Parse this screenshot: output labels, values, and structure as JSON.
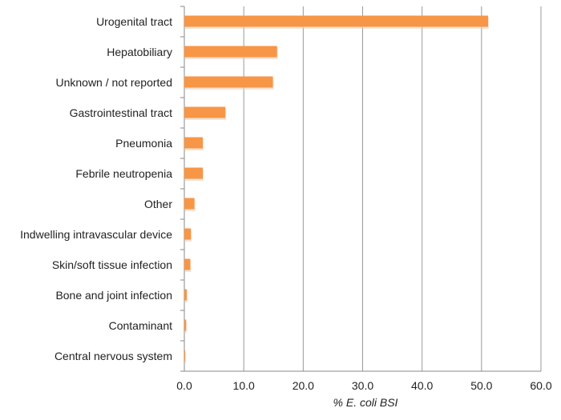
{
  "chart_data": {
    "type": "bar",
    "orientation": "horizontal",
    "title": "",
    "xlabel": "% E. coli BSI",
    "ylabel": "",
    "xlim": [
      0,
      60
    ],
    "xticks": [
      "0.0",
      "10.0",
      "20.0",
      "30.0",
      "40.0",
      "50.0",
      "60.0"
    ],
    "grid": true,
    "categories": [
      "Urogenital tract",
      "Hepatobiliary",
      "Unknown / not reported",
      "Gastrointestinal tract",
      "Pneumonia",
      "Febrile neutropenia",
      "Other",
      "Indwelling intravascular device",
      "Skin/soft tissue infection",
      "Bone and joint infection",
      "Contaminant",
      "Central nervous system"
    ],
    "values": [
      51.1,
      15.6,
      14.9,
      6.9,
      3.1,
      3.1,
      1.7,
      1.1,
      1.0,
      0.4,
      0.3,
      0.1
    ],
    "bar_color": "#f79646"
  }
}
